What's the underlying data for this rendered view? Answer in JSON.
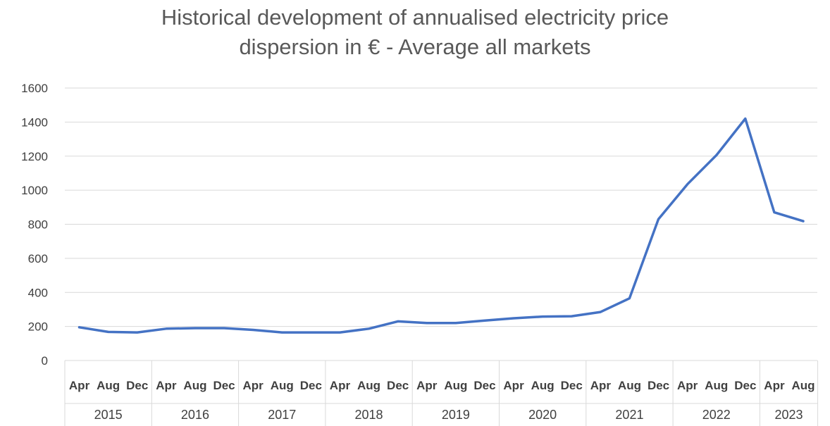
{
  "chart_data": {
    "type": "line",
    "title": "Historical development of annualised electricity price dispersion in € - Average all markets",
    "title_lines": [
      "Historical development of annualised electricity price",
      "dispersion in € - Average all markets"
    ],
    "ylim": [
      0,
      1600
    ],
    "y_ticks": [
      0,
      200,
      400,
      600,
      800,
      1000,
      1200,
      1400,
      1600
    ],
    "grid": true,
    "legend": "none",
    "line_color": "#4472C4",
    "groups": [
      {
        "year": "2015",
        "months": [
          "Apr",
          "Aug",
          "Dec"
        ]
      },
      {
        "year": "2016",
        "months": [
          "Apr",
          "Aug",
          "Dec"
        ]
      },
      {
        "year": "2017",
        "months": [
          "Apr",
          "Aug",
          "Dec"
        ]
      },
      {
        "year": "2018",
        "months": [
          "Apr",
          "Aug",
          "Dec"
        ]
      },
      {
        "year": "2019",
        "months": [
          "Apr",
          "Aug",
          "Dec"
        ]
      },
      {
        "year": "2020",
        "months": [
          "Apr",
          "Aug",
          "Dec"
        ]
      },
      {
        "year": "2021",
        "months": [
          "Apr",
          "Aug",
          "Dec"
        ]
      },
      {
        "year": "2022",
        "months": [
          "Apr",
          "Aug",
          "Dec"
        ]
      },
      {
        "year": "2023",
        "months": [
          "Apr",
          "Aug"
        ]
      }
    ],
    "series": [
      {
        "values": [
          195,
          168,
          165,
          187,
          190,
          190,
          180,
          165,
          165,
          165,
          187,
          230,
          220,
          220,
          235,
          248,
          258,
          260,
          285,
          365,
          830,
          1035,
          1205,
          1420,
          870,
          818
        ]
      }
    ]
  }
}
